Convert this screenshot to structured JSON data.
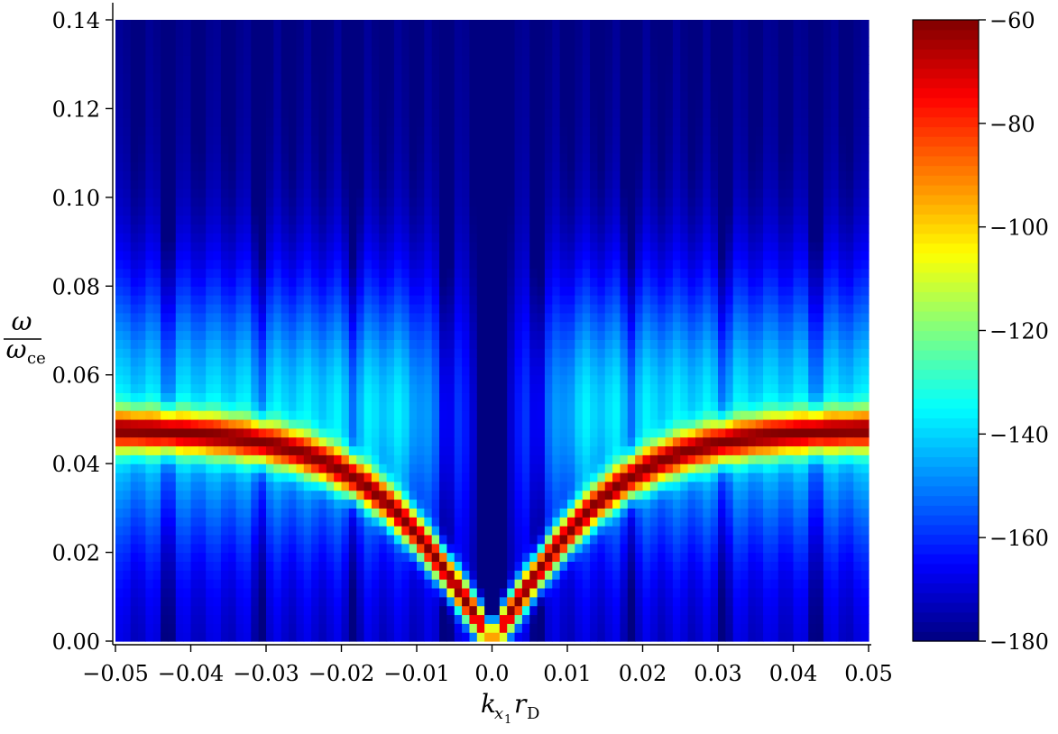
{
  "chart_data": {
    "type": "heatmap",
    "title": "",
    "xlabel": {
      "main": "k",
      "sub1": "x",
      "sub2": "1",
      "main2": "r",
      "sub3": "D"
    },
    "ylabel": {
      "numerator": "ω",
      "denominator": "ω",
      "denominator_sub": "ce"
    },
    "xlim": [
      -0.05,
      0.05
    ],
    "ylim": [
      0.0,
      0.14
    ],
    "x_ticks": [
      -0.05,
      -0.04,
      -0.03,
      -0.02,
      -0.01,
      0.0,
      0.01,
      0.02,
      0.03,
      0.04,
      0.05
    ],
    "x_tick_labels": [
      "−0.05",
      "−0.04",
      "−0.03",
      "−0.02",
      "−0.01",
      "0.0",
      "0.01",
      "0.02",
      "0.03",
      "0.04",
      "0.05"
    ],
    "y_ticks": [
      0.0,
      0.02,
      0.04,
      0.06,
      0.08,
      0.1,
      0.12,
      0.14
    ],
    "y_tick_labels": [
      "0.00",
      "0.02",
      "0.04",
      "0.06",
      "0.08",
      "0.10",
      "0.12",
      "0.14"
    ],
    "colorbar": {
      "range": [
        -180,
        -60
      ],
      "ticks": [
        -180,
        -160,
        -140,
        -120,
        -100,
        -80,
        -60
      ],
      "tick_labels": [
        "−180",
        "−160",
        "−140",
        "−120",
        "−100",
        "−80",
        "−60"
      ],
      "colormap": "jet"
    },
    "grid": false,
    "data_description": {
      "dispersion_peak_value": -60,
      "band_peak_omega_at_edges": 0.048,
      "background_high_omega": -170,
      "center_null_k": 0.0
    }
  }
}
